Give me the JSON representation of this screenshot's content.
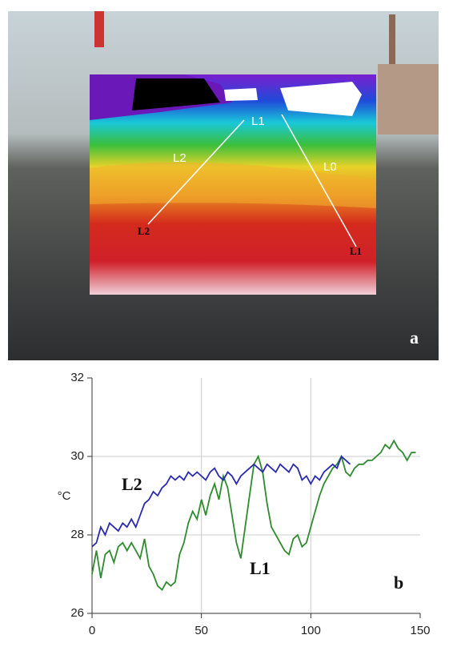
{
  "photo": {
    "panel": "a",
    "labels": [
      "L1",
      "L2",
      "L0",
      "L2",
      "L1"
    ]
  },
  "chart_data": {
    "type": "line",
    "y_label": "°C",
    "annotations": [
      "L2",
      "L1",
      "b"
    ],
    "x": [
      0,
      2,
      4,
      6,
      8,
      10,
      12,
      14,
      16,
      18,
      20,
      22,
      24,
      26,
      28,
      30,
      32,
      34,
      36,
      38,
      40,
      42,
      44,
      46,
      48,
      50,
      52,
      54,
      56,
      58,
      60,
      62,
      64,
      66,
      68,
      70,
      72,
      74,
      76,
      78,
      80,
      82,
      84,
      86,
      88,
      90,
      92,
      94,
      96,
      98,
      100,
      102,
      104,
      106,
      108,
      110,
      112,
      114,
      116,
      118,
      120,
      122,
      124,
      126,
      128,
      130,
      132,
      134,
      136,
      138,
      140,
      142,
      144,
      146,
      148
    ],
    "series": [
      {
        "name": "L1",
        "color": "#2e8b2e",
        "values": [
          27.0,
          27.6,
          26.9,
          27.5,
          27.6,
          27.3,
          27.7,
          27.8,
          27.6,
          27.8,
          27.6,
          27.4,
          27.9,
          27.2,
          27.0,
          26.7,
          26.6,
          26.8,
          26.7,
          26.8,
          27.5,
          27.8,
          28.3,
          28.6,
          28.4,
          28.9,
          28.5,
          29.0,
          29.3,
          28.9,
          29.5,
          29.2,
          28.5,
          27.8,
          27.4,
          28.2,
          29.0,
          29.8,
          30.0,
          29.6,
          28.8,
          28.2,
          28.0,
          27.8,
          27.6,
          27.5,
          27.9,
          28.0,
          27.7,
          27.8,
          28.2,
          28.6,
          29.0,
          29.3,
          29.5,
          29.7,
          29.8,
          30.0,
          29.6,
          29.5,
          29.7,
          29.8,
          29.8,
          29.9,
          29.9,
          30.0,
          30.1,
          30.3,
          30.2,
          30.4,
          30.2,
          30.1,
          29.9,
          30.1,
          30.1
        ]
      },
      {
        "name": "L2",
        "color": "#2a2ab0",
        "values": [
          27.7,
          27.8,
          28.2,
          28.0,
          28.3,
          28.2,
          28.1,
          28.3,
          28.2,
          28.4,
          28.2,
          28.5,
          28.8,
          28.9,
          29.1,
          29.0,
          29.2,
          29.3,
          29.5,
          29.4,
          29.5,
          29.4,
          29.6,
          29.5,
          29.6,
          29.5,
          29.4,
          29.6,
          29.7,
          29.5,
          29.4,
          29.6,
          29.5,
          29.3,
          29.5,
          29.6,
          29.7,
          29.8,
          29.7,
          29.6,
          29.8,
          29.7,
          29.6,
          29.8,
          29.7,
          29.6,
          29.8,
          29.7,
          29.4,
          29.5,
          29.3,
          29.5,
          29.4,
          29.6,
          29.7,
          29.8,
          29.7,
          30.0,
          29.9,
          29.8,
          null,
          null,
          null,
          null,
          null,
          null,
          null,
          null,
          null,
          null,
          null,
          null,
          null,
          null,
          null
        ]
      }
    ],
    "xlim": [
      0,
      150
    ],
    "xticks": [
      0,
      50,
      100,
      150
    ],
    "ylim": [
      26,
      32
    ],
    "yticks": [
      26,
      28,
      30,
      32
    ],
    "grid": true
  }
}
